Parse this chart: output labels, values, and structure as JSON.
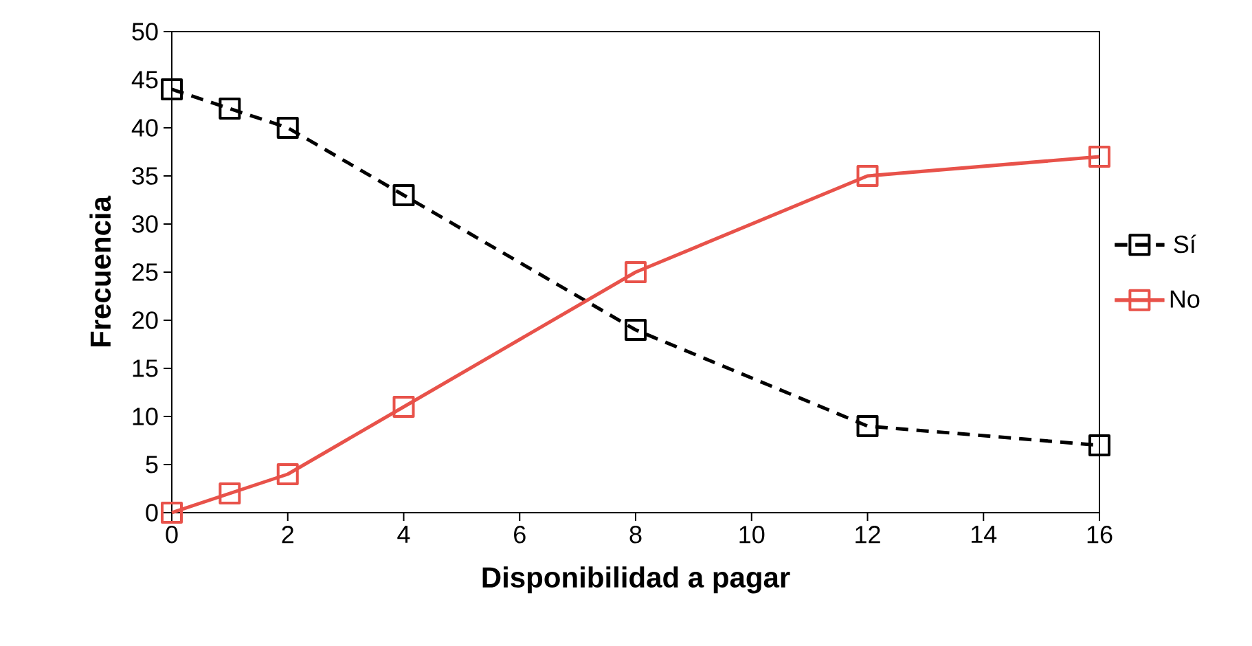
{
  "chart_data": {
    "type": "line",
    "xlabel": "Disponibilidad a pagar",
    "ylabel": "Frecuencia",
    "series": [
      {
        "name": "Sí",
        "color": "#000000",
        "line_style": "dashed",
        "x": [
          0,
          1,
          2,
          4,
          8,
          12,
          16
        ],
        "values": [
          44,
          42,
          40,
          33,
          19,
          9,
          7
        ]
      },
      {
        "name": "No",
        "color": "#e8524a",
        "line_style": "solid",
        "x": [
          0,
          1,
          2,
          4,
          8,
          12,
          16
        ],
        "values": [
          0,
          2,
          4,
          11,
          25,
          35,
          37
        ]
      }
    ],
    "xlim": [
      0,
      16
    ],
    "xticks": [
      0,
      2,
      4,
      6,
      8,
      10,
      12,
      14,
      16
    ],
    "ylim": [
      0,
      50
    ],
    "yticks": [
      0,
      5,
      10,
      15,
      20,
      25,
      30,
      35,
      40,
      45,
      50
    ],
    "marker": "square",
    "grid": false,
    "legend": "right"
  }
}
